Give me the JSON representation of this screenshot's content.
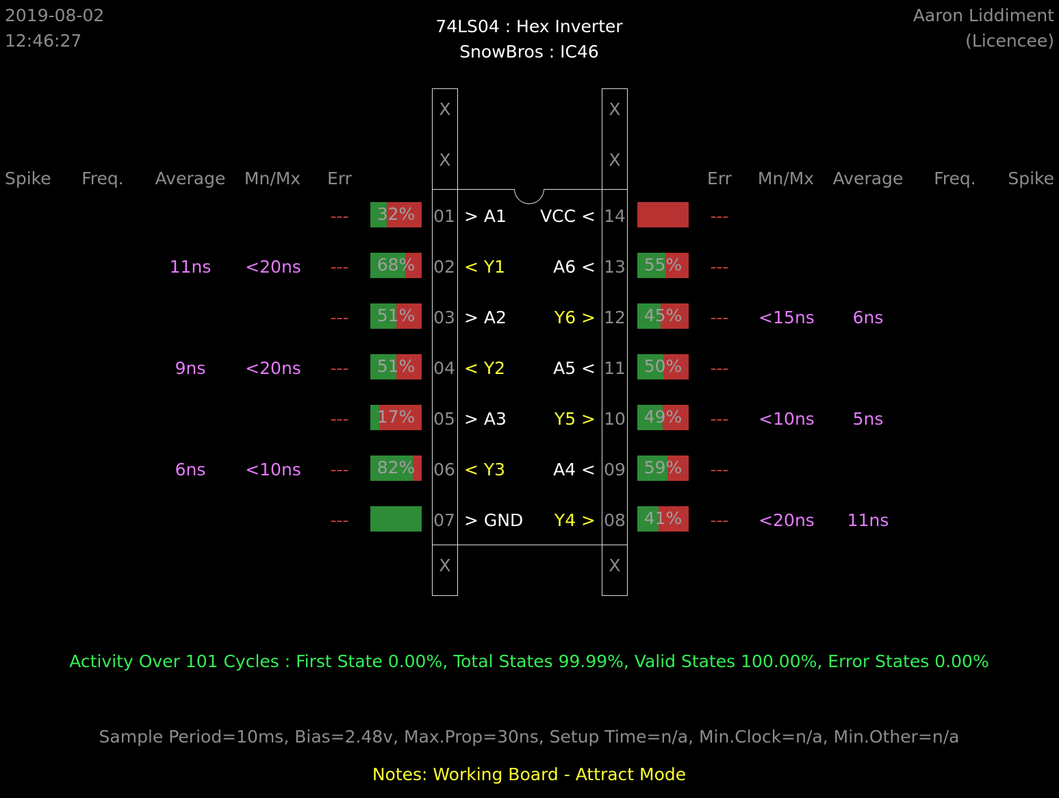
{
  "header": {
    "date": "2019-08-02",
    "time": "12:46:27",
    "title": "74LS04  :  Hex Inverter",
    "subtitle": "SnowBros : IC46",
    "user": "Aaron Liddiment",
    "role": "(Licencee)"
  },
  "columns": {
    "left": [
      "Spike",
      "Freq.",
      "Average",
      "Mn/Mx",
      "Err"
    ],
    "right": [
      "Err",
      "Mn/Mx",
      "Average",
      "Freq.",
      "Spike"
    ]
  },
  "nc_label": "X",
  "left_pins": [
    {
      "num": "01",
      "label": "> A1",
      "kind": "in",
      "err": "---",
      "high": 0.32,
      "pct": "32%",
      "avg": "",
      "mnmx": ""
    },
    {
      "num": "02",
      "label": "< Y1",
      "kind": "out",
      "err": "---",
      "high": 0.68,
      "pct": "68%",
      "avg": "11ns",
      "mnmx": "<20ns"
    },
    {
      "num": "03",
      "label": "> A2",
      "kind": "in",
      "err": "---",
      "high": 0.51,
      "pct": "51%",
      "avg": "",
      "mnmx": ""
    },
    {
      "num": "04",
      "label": "< Y2",
      "kind": "out",
      "err": "---",
      "high": 0.51,
      "pct": "51%",
      "avg": "9ns",
      "mnmx": "<20ns"
    },
    {
      "num": "05",
      "label": "> A3",
      "kind": "in",
      "err": "---",
      "high": 0.17,
      "pct": "17%",
      "avg": "",
      "mnmx": ""
    },
    {
      "num": "06",
      "label": "< Y3",
      "kind": "out",
      "err": "---",
      "high": 0.82,
      "pct": "82%",
      "avg": "6ns",
      "mnmx": "<10ns"
    },
    {
      "num": "07",
      "label": "> GND",
      "kind": "in",
      "err": "---",
      "high": 1.0,
      "pct": "",
      "avg": "",
      "mnmx": ""
    }
  ],
  "right_pins": [
    {
      "num": "14",
      "label": "VCC <",
      "kind": "in",
      "err": "---",
      "high": 0.0,
      "pct": "",
      "avg": "",
      "mnmx": ""
    },
    {
      "num": "13",
      "label": "A6 <",
      "kind": "in",
      "err": "---",
      "high": 0.55,
      "pct": "55%",
      "avg": "",
      "mnmx": ""
    },
    {
      "num": "12",
      "label": "Y6 >",
      "kind": "out",
      "err": "---",
      "high": 0.45,
      "pct": "45%",
      "avg": "6ns",
      "mnmx": "<15ns"
    },
    {
      "num": "11",
      "label": "A5 <",
      "kind": "in",
      "err": "---",
      "high": 0.5,
      "pct": "50%",
      "avg": "",
      "mnmx": ""
    },
    {
      "num": "10",
      "label": "Y5 >",
      "kind": "out",
      "err": "---",
      "high": 0.49,
      "pct": "49%",
      "avg": "5ns",
      "mnmx": "<10ns"
    },
    {
      "num": "09",
      "label": "A4 <",
      "kind": "in",
      "err": "---",
      "high": 0.59,
      "pct": "59%",
      "avg": "",
      "mnmx": ""
    },
    {
      "num": "08",
      "label": "Y4 >",
      "kind": "out",
      "err": "---",
      "high": 0.41,
      "pct": "41%",
      "avg": "11ns",
      "mnmx": "<20ns"
    }
  ],
  "activity": "Activity Over 101 Cycles  :  First State 0.00%,  Total States 99.99%,  Valid States 100.00%,  Error States 0.00%",
  "params": "Sample Period=10ms,  Bias=2.48v,  Max.Prop=30ns,  Setup Time=n/a,  Min.Clock=n/a,  Min.Other=n/a",
  "notes": "Notes:  Working Board - Attract Mode",
  "colors": {
    "high": "#2e8b37",
    "low": "#b83232",
    "input": "#ffffff",
    "output": "#ffff33",
    "timing": "#e57bff",
    "error": "#c23a3a",
    "summary": "#33ee55"
  }
}
